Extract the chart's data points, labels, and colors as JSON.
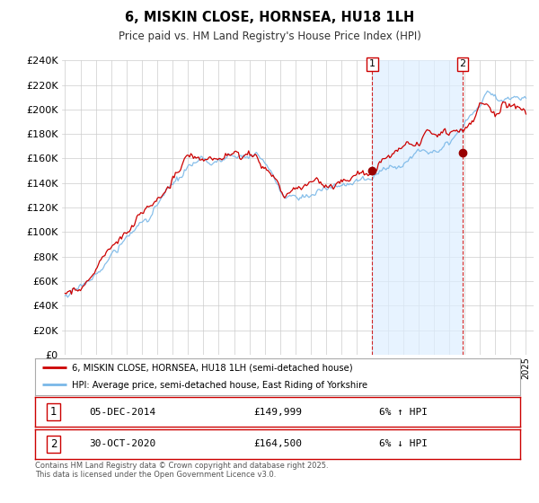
{
  "title": "6, MISKIN CLOSE, HORNSEA, HU18 1LH",
  "subtitle": "Price paid vs. HM Land Registry's House Price Index (HPI)",
  "legend_label_1": "6, MISKIN CLOSE, HORNSEA, HU18 1LH (semi-detached house)",
  "legend_label_2": "HPI: Average price, semi-detached house, East Riding of Yorkshire",
  "transaction_1": {
    "label": "1",
    "date": "05-DEC-2014",
    "price": "£149,999",
    "hpi": "6% ↑ HPI"
  },
  "transaction_2": {
    "label": "2",
    "date": "30-OCT-2020",
    "price": "£164,500",
    "hpi": "6% ↓ HPI"
  },
  "footer": "Contains HM Land Registry data © Crown copyright and database right 2025.\nThis data is licensed under the Open Government Licence v3.0.",
  "hpi_color": "#7ab8e8",
  "price_color": "#cc0000",
  "marker_color": "#990000",
  "dashed_line_color": "#cc0000",
  "background_color": "#ffffff",
  "plot_bg_color": "#ffffff",
  "shade_color": "#ddeeff",
  "grid_color": "#cccccc",
  "ylim": [
    0,
    240000
  ],
  "yticks": [
    0,
    20000,
    40000,
    60000,
    80000,
    100000,
    120000,
    140000,
    160000,
    180000,
    200000,
    220000,
    240000
  ],
  "year_start": 1995,
  "year_end": 2025,
  "vline_1_year": 2015.0,
  "vline_2_year": 2020.88,
  "marker_1_year": 2015.0,
  "marker_1_value": 149999,
  "marker_2_year": 2020.88,
  "marker_2_value": 164500
}
